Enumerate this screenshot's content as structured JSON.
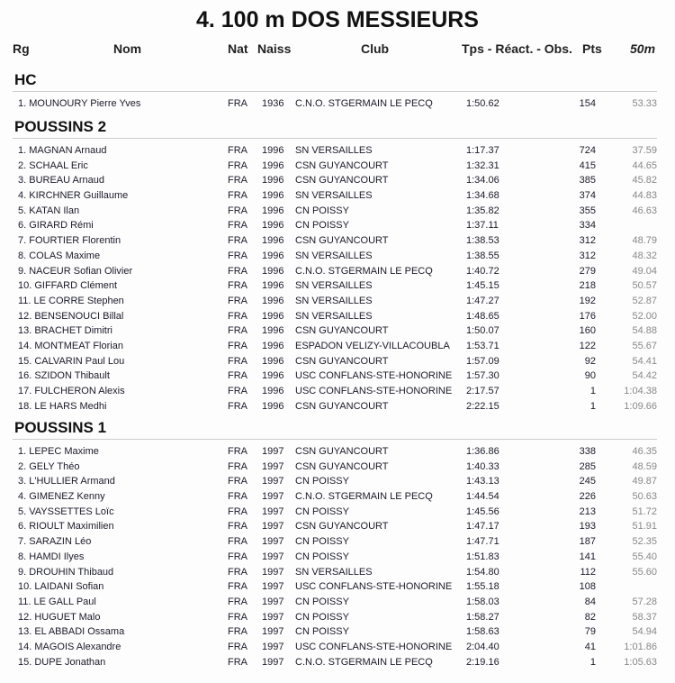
{
  "title": "4.  100 m DOS MESSIEURS",
  "headers": {
    "rank": "Rg",
    "name": "Nom",
    "nat": "Nat",
    "naiss": "Naiss",
    "club": "Club",
    "tps": "Tps - Réact. - Obs.",
    "pts": "Pts",
    "split": "50m"
  },
  "sections": [
    {
      "label": "HC",
      "rows": [
        {
          "name": "1. MOUNOURY Pierre Yves",
          "nat": "FRA",
          "year": "1936",
          "club": "C.N.O. STGERMAIN LE PECQ",
          "time": "1:50.62",
          "pts": "154",
          "split": "53.33"
        }
      ]
    },
    {
      "label": "POUSSINS 2",
      "rows": [
        {
          "name": "1. MAGNAN Arnaud",
          "nat": "FRA",
          "year": "1996",
          "club": "SN VERSAILLES",
          "time": "1:17.37",
          "pts": "724",
          "split": "37.59"
        },
        {
          "name": "2. SCHAAL Eric",
          "nat": "FRA",
          "year": "1996",
          "club": "CSN GUYANCOURT",
          "time": "1:32.31",
          "pts": "415",
          "split": "44.65"
        },
        {
          "name": "3. BUREAU Arnaud",
          "nat": "FRA",
          "year": "1996",
          "club": "CSN GUYANCOURT",
          "time": "1:34.06",
          "pts": "385",
          "split": "45.82"
        },
        {
          "name": "4. KIRCHNER Guillaume",
          "nat": "FRA",
          "year": "1996",
          "club": "SN VERSAILLES",
          "time": "1:34.68",
          "pts": "374",
          "split": "44.83"
        },
        {
          "name": "5. KATAN Ilan",
          "nat": "FRA",
          "year": "1996",
          "club": "CN POISSY",
          "time": "1:35.82",
          "pts": "355",
          "split": "46.63"
        },
        {
          "name": "6. GIRARD Rémi",
          "nat": "FRA",
          "year": "1996",
          "club": "CN POISSY",
          "time": "1:37.11",
          "pts": "334",
          "split": ""
        },
        {
          "name": "7. FOURTIER Florentin",
          "nat": "FRA",
          "year": "1996",
          "club": "CSN GUYANCOURT",
          "time": "1:38.53",
          "pts": "312",
          "split": "48.79"
        },
        {
          "name": "8. COLAS Maxime",
          "nat": "FRA",
          "year": "1996",
          "club": "SN VERSAILLES",
          "time": "1:38.55",
          "pts": "312",
          "split": "48.32"
        },
        {
          "name": "9. NACEUR Sofian Olivier",
          "nat": "FRA",
          "year": "1996",
          "club": "C.N.O. STGERMAIN LE PECQ",
          "time": "1:40.72",
          "pts": "279",
          "split": "49.04"
        },
        {
          "name": "10. GIFFARD Clément",
          "nat": "FRA",
          "year": "1996",
          "club": "SN VERSAILLES",
          "time": "1:45.15",
          "pts": "218",
          "split": "50.57"
        },
        {
          "name": "11. LE CORRE Stephen",
          "nat": "FRA",
          "year": "1996",
          "club": "SN VERSAILLES",
          "time": "1:47.27",
          "pts": "192",
          "split": "52.87"
        },
        {
          "name": "12. BENSENOUCI Billal",
          "nat": "FRA",
          "year": "1996",
          "club": "SN VERSAILLES",
          "time": "1:48.65",
          "pts": "176",
          "split": "52.00"
        },
        {
          "name": "13. BRACHET Dimitri",
          "nat": "FRA",
          "year": "1996",
          "club": "CSN GUYANCOURT",
          "time": "1:50.07",
          "pts": "160",
          "split": "54.88"
        },
        {
          "name": "14. MONTMEAT Florian",
          "nat": "FRA",
          "year": "1996",
          "club": "ESPADON VELIZY-VILLACOUBLA",
          "time": "1:53.71",
          "pts": "122",
          "split": "55.67"
        },
        {
          "name": "15. CALVARIN Paul Lou",
          "nat": "FRA",
          "year": "1996",
          "club": "CSN GUYANCOURT",
          "time": "1:57.09",
          "pts": "92",
          "split": "54.41"
        },
        {
          "name": "16. SZIDON Thibault",
          "nat": "FRA",
          "year": "1996",
          "club": "USC CONFLANS-STE-HONORINE",
          "time": "1:57.30",
          "pts": "90",
          "split": "54.42"
        },
        {
          "name": "17. FULCHERON Alexis",
          "nat": "FRA",
          "year": "1996",
          "club": "USC CONFLANS-STE-HONORINE",
          "time": "2:17.57",
          "pts": "1",
          "split": "1:04.38"
        },
        {
          "name": "18. LE HARS Medhi",
          "nat": "FRA",
          "year": "1996",
          "club": "CSN GUYANCOURT",
          "time": "2:22.15",
          "pts": "1",
          "split": "1:09.66"
        }
      ]
    },
    {
      "label": "POUSSINS 1",
      "rows": [
        {
          "name": "1. LEPEC Maxime",
          "nat": "FRA",
          "year": "1997",
          "club": "CSN GUYANCOURT",
          "time": "1:36.86",
          "pts": "338",
          "split": "46.35"
        },
        {
          "name": "2. GELY Théo",
          "nat": "FRA",
          "year": "1997",
          "club": "CSN GUYANCOURT",
          "time": "1:40.33",
          "pts": "285",
          "split": "48.59"
        },
        {
          "name": "3. L'HULLIER Armand",
          "nat": "FRA",
          "year": "1997",
          "club": "CN POISSY",
          "time": "1:43.13",
          "pts": "245",
          "split": "49.87"
        },
        {
          "name": "4. GIMENEZ Kenny",
          "nat": "FRA",
          "year": "1997",
          "club": "C.N.O. STGERMAIN LE PECQ",
          "time": "1:44.54",
          "pts": "226",
          "split": "50.63"
        },
        {
          "name": "5. VAYSSETTES Loïc",
          "nat": "FRA",
          "year": "1997",
          "club": "CN POISSY",
          "time": "1:45.56",
          "pts": "213",
          "split": "51.72"
        },
        {
          "name": "6. RIOULT Maximilien",
          "nat": "FRA",
          "year": "1997",
          "club": "CSN GUYANCOURT",
          "time": "1:47.17",
          "pts": "193",
          "split": "51.91"
        },
        {
          "name": "7. SARAZIN Léo",
          "nat": "FRA",
          "year": "1997",
          "club": "CN POISSY",
          "time": "1:47.71",
          "pts": "187",
          "split": "52.35"
        },
        {
          "name": "8. HAMDI Ilyes",
          "nat": "FRA",
          "year": "1997",
          "club": "CN POISSY",
          "time": "1:51.83",
          "pts": "141",
          "split": "55.40"
        },
        {
          "name": "9. DROUHIN Thibaud",
          "nat": "FRA",
          "year": "1997",
          "club": "SN VERSAILLES",
          "time": "1:54.80",
          "pts": "112",
          "split": "55.60"
        },
        {
          "name": "10. LAIDANI Sofian",
          "nat": "FRA",
          "year": "1997",
          "club": "USC CONFLANS-STE-HONORINE",
          "time": "1:55.18",
          "pts": "108",
          "split": ""
        },
        {
          "name": "11. LE GALL Paul",
          "nat": "FRA",
          "year": "1997",
          "club": "CN POISSY",
          "time": "1:58.03",
          "pts": "84",
          "split": "57.28"
        },
        {
          "name": "12. HUGUET Malo",
          "nat": "FRA",
          "year": "1997",
          "club": "CN POISSY",
          "time": "1:58.27",
          "pts": "82",
          "split": "58.37"
        },
        {
          "name": "13. EL ABBADI Ossama",
          "nat": "FRA",
          "year": "1997",
          "club": "CN POISSY",
          "time": "1:58.63",
          "pts": "79",
          "split": "54.94"
        },
        {
          "name": "14. MAGOIS Alexandre",
          "nat": "FRA",
          "year": "1997",
          "club": "USC CONFLANS-STE-HONORINE",
          "time": "2:04.40",
          "pts": "41",
          "split": "1:01.86"
        },
        {
          "name": "15. DUPE Jonathan",
          "nat": "FRA",
          "year": "1997",
          "club": "C.N.O. STGERMAIN LE PECQ",
          "time": "2:19.16",
          "pts": "1",
          "split": "1:05.63"
        }
      ]
    }
  ]
}
